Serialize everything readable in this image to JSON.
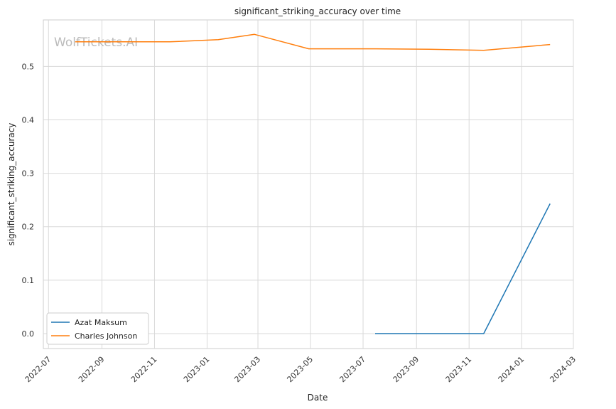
{
  "chart_data": {
    "type": "line",
    "title": "significant_striking_accuracy over time",
    "xlabel": "Date",
    "ylabel": "significant_striking_accuracy",
    "watermark": "WolfTickets.AI",
    "x_ticks": [
      "2022-07",
      "2022-09",
      "2022-11",
      "2023-01",
      "2023-03",
      "2023-05",
      "2023-07",
      "2023-09",
      "2023-11",
      "2024-01",
      "2024-03"
    ],
    "y_ticks": [
      "0.0",
      "0.1",
      "0.2",
      "0.3",
      "0.4",
      "0.5"
    ],
    "xlim": [
      "2022-06-25",
      "2024-03-01"
    ],
    "ylim": [
      -0.028,
      0.587
    ],
    "grid": true,
    "legend_position": "lower-left",
    "series": [
      {
        "name": "Azat Maksum",
        "color": "#1f77b4",
        "x": [
          "2023-07-15",
          "2023-11-18",
          "2024-02-03"
        ],
        "y": [
          0.0,
          0.0,
          0.243
        ]
      },
      {
        "name": "Charles Johnson",
        "color": "#ff7f0e",
        "x": [
          "2022-08-01",
          "2022-11-19",
          "2023-01-14",
          "2023-02-25",
          "2023-04-29",
          "2023-07-15",
          "2023-09-16",
          "2023-11-18",
          "2024-02-03"
        ],
        "y": [
          0.546,
          0.546,
          0.55,
          0.56,
          0.533,
          0.533,
          0.532,
          0.53,
          0.541
        ]
      }
    ]
  }
}
